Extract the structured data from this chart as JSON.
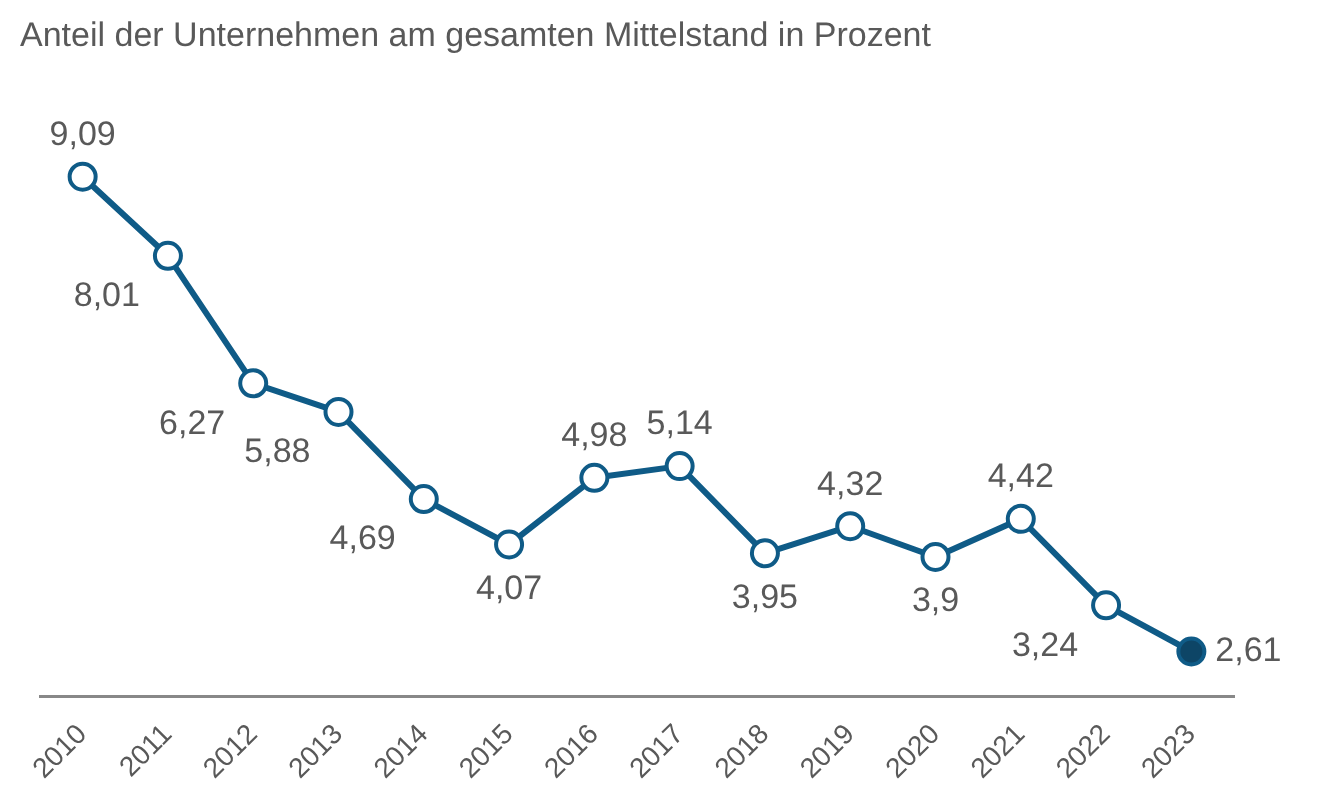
{
  "chart_data": {
    "type": "line",
    "title": "Anteil der Unternehmen am gesamten Mittelstand in Prozent",
    "categories": [
      "2010",
      "2011",
      "2012",
      "2013",
      "2014",
      "2015",
      "2016",
      "2017",
      "2018",
      "2019",
      "2020",
      "2021",
      "2022",
      "2023"
    ],
    "series": [
      {
        "color": "#0f5b87",
        "values": [
          9.09,
          8.01,
          6.27,
          5.88,
          4.69,
          4.07,
          4.98,
          5.14,
          3.95,
          4.32,
          3.9,
          4.42,
          3.24,
          2.61
        ],
        "value_labels": [
          "9,09",
          "8,01",
          "6,27",
          "5,88",
          "4,69",
          "4,07",
          "4,98",
          "5,14",
          "3,95",
          "4,32",
          "3,9",
          "4,42",
          "3,24",
          "2,61"
        ],
        "colors": [
          "#ffffff",
          "#ffffff",
          "#ffffff",
          "#ffffff",
          "#ffffff",
          "#ffffff",
          "#ffffff",
          "#ffffff",
          "#ffffff",
          "#ffffff",
          "#ffffff",
          "#ffffff",
          "#ffffff",
          "#0d4566"
        ]
      }
    ],
    "marker": "circle",
    "line_style": "solid",
    "grid": false,
    "legend": false,
    "tick_labels": "x"
  }
}
